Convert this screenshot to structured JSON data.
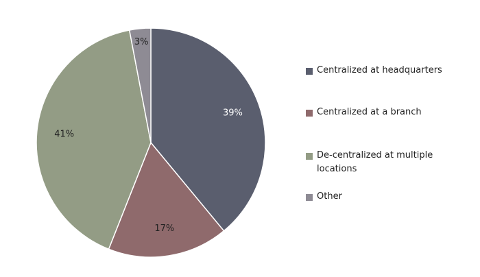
{
  "chart_data": {
    "type": "pie",
    "title": "",
    "start_angle_deg": 0,
    "direction": "clockwise",
    "legend_position": "right",
    "slices": [
      {
        "label": "Centralized at headquarters",
        "value": 39,
        "display": "39%",
        "color": "#5a5e6e",
        "label_light": true
      },
      {
        "label": "Centralized at a branch",
        "value": 17,
        "display": "17%",
        "color": "#8f6a6c",
        "label_light": false
      },
      {
        "label": "De-centralized at multiple locations",
        "value": 41,
        "display": "41%",
        "color": "#939c85",
        "label_light": false
      },
      {
        "label": "Other",
        "value": 3,
        "display": "3%",
        "color": "#8e8b94",
        "label_light": false
      }
    ]
  }
}
